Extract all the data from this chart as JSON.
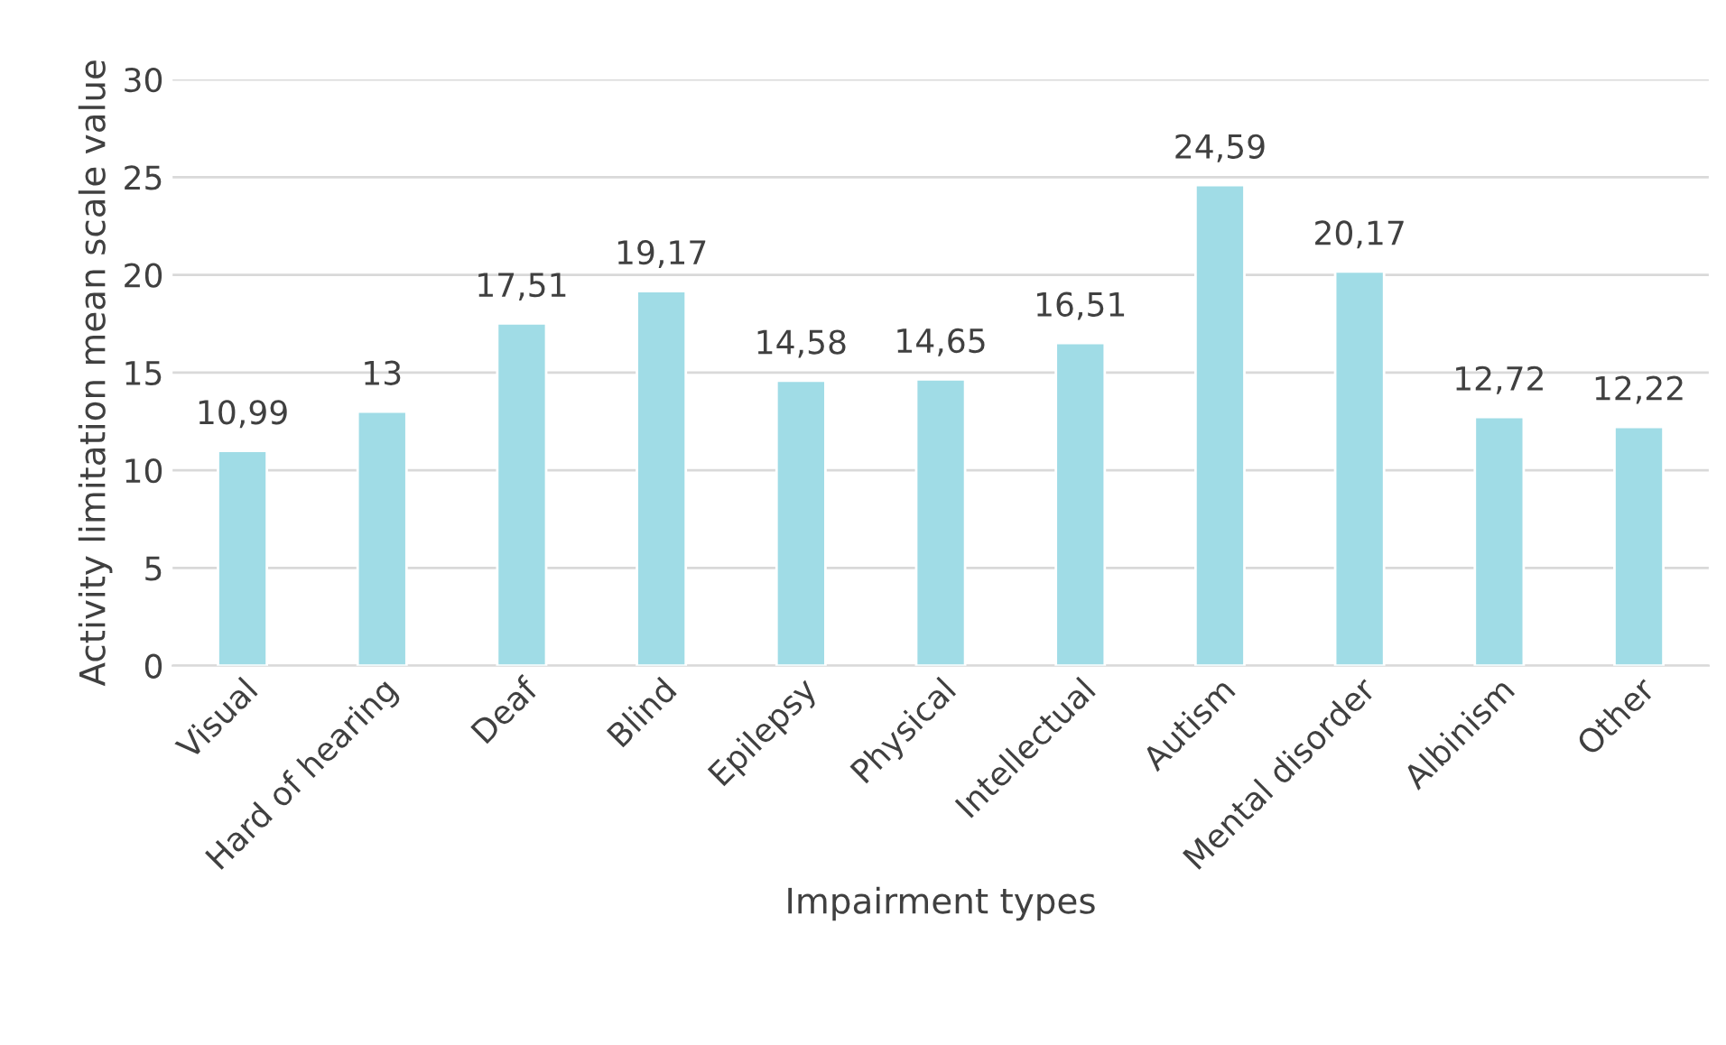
{
  "chart_data": {
    "type": "bar",
    "xlabel": "Impairment types",
    "ylabel": "Activity limitation mean scale value",
    "categories": [
      "Visual",
      "Hard of hearing",
      "Deaf",
      "Blind",
      "Epilepsy",
      "Physical",
      "Intellectual",
      "Autism",
      "Mental disorder",
      "Albinism",
      "Other"
    ],
    "values": [
      10.99,
      13,
      17.51,
      19.17,
      14.58,
      14.65,
      16.51,
      24.59,
      20.17,
      12.72,
      12.22
    ],
    "value_labels": [
      "10,99",
      "13",
      "17,51",
      "19,17",
      "14,58",
      "14,65",
      "16,51",
      "24,59",
      "20,17",
      "12,72",
      "12,22"
    ],
    "color": "#a0dce6",
    "ylim": [
      0,
      30
    ],
    "yticks": [
      0,
      5,
      10,
      15,
      20,
      25,
      30
    ],
    "grid": "y"
  }
}
